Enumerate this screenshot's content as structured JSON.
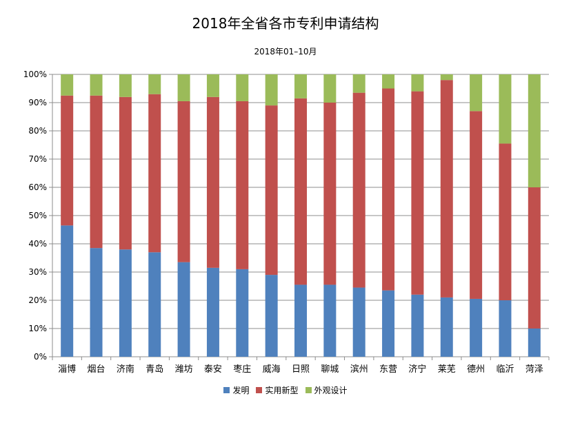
{
  "chart_data": {
    "type": "bar",
    "stacked": true,
    "percent": true,
    "title": "2018年全省各市专利申请结构",
    "subtitle": "2018年01–10月",
    "categories": [
      "淄博",
      "烟台",
      "济南",
      "青岛",
      "潍坊",
      "泰安",
      "枣庄",
      "威海",
      "日照",
      "聊城",
      "滨州",
      "东营",
      "济宁",
      "莱芜",
      "德州",
      "临沂",
      "菏泽"
    ],
    "series": [
      {
        "name": "发明",
        "color": "#4F81BD",
        "values": [
          46.5,
          38.5,
          38.0,
          37.0,
          33.5,
          31.5,
          31.0,
          29.0,
          25.5,
          25.5,
          24.5,
          23.5,
          22.0,
          21.0,
          20.5,
          20.0,
          10.0
        ]
      },
      {
        "name": "实用新型",
        "color": "#C0504D",
        "values": [
          46.0,
          54.0,
          54.0,
          56.0,
          57.0,
          60.5,
          59.5,
          60.0,
          66.0,
          64.5,
          69.0,
          71.5,
          72.0,
          77.0,
          66.5,
          55.5,
          50.0
        ]
      },
      {
        "name": "外观设计",
        "color": "#9BBB59",
        "values": [
          7.5,
          7.5,
          8.0,
          7.0,
          9.5,
          8.0,
          9.5,
          11.0,
          8.5,
          10.0,
          6.5,
          5.0,
          6.0,
          2.0,
          13.0,
          24.5,
          40.0
        ]
      }
    ],
    "yticks": [
      "0%",
      "10%",
      "20%",
      "30%",
      "40%",
      "50%",
      "60%",
      "70%",
      "80%",
      "90%",
      "100%"
    ],
    "ylim": [
      0,
      100
    ],
    "grid": true,
    "legend_position": "bottom"
  }
}
